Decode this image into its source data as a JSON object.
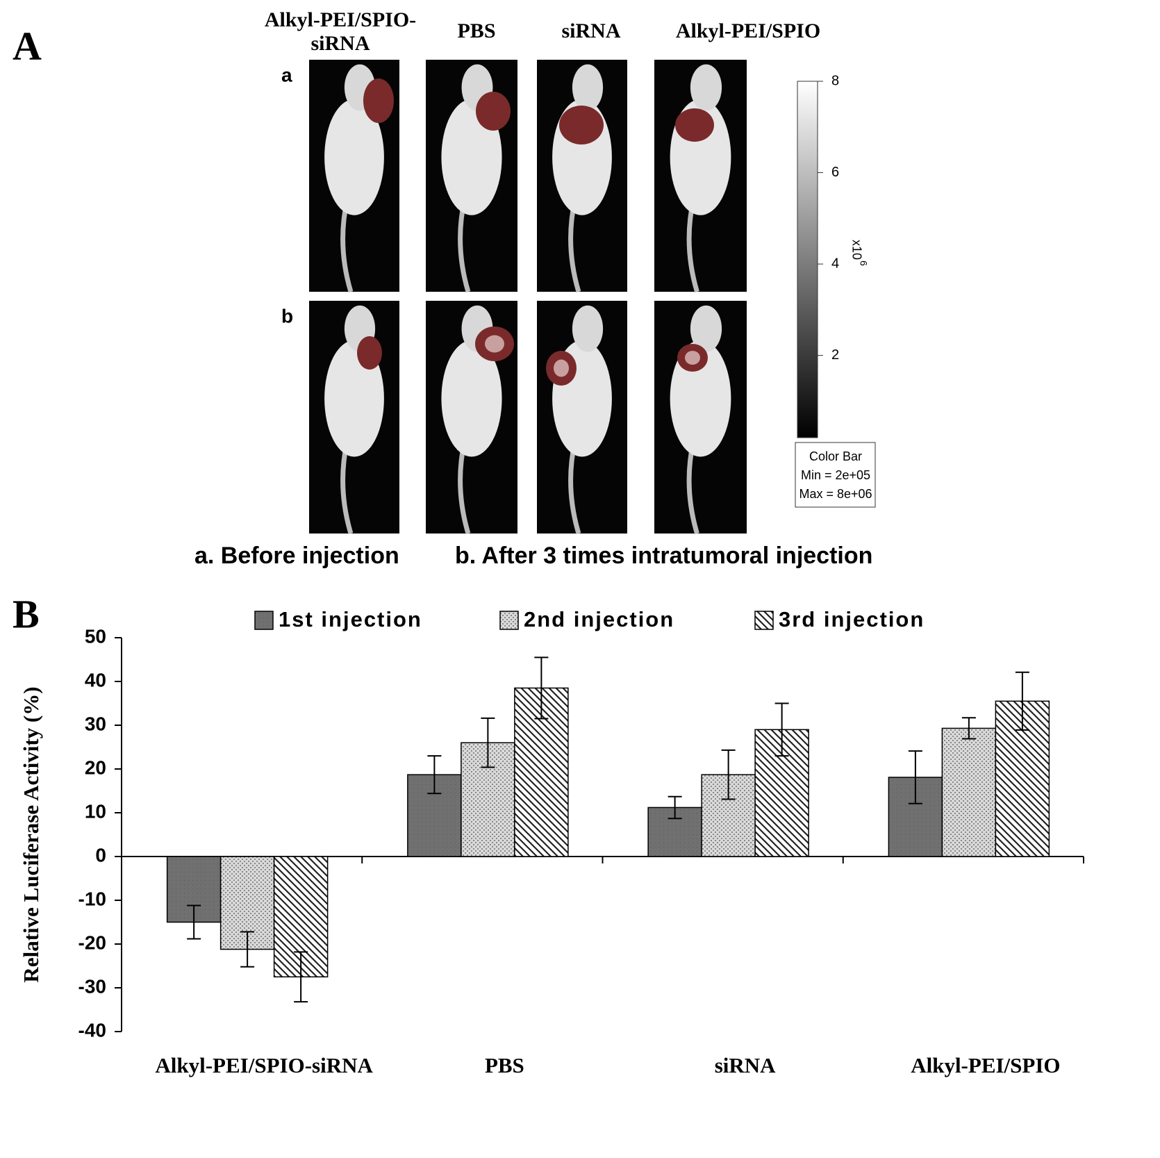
{
  "panel_a": {
    "label": "A",
    "column_labels": [
      "Alkyl-PEI/SPIO-siRNA",
      "PBS",
      "siRNA",
      "Alkyl-PEI/SPIO"
    ],
    "row_labels": [
      "a",
      "b"
    ],
    "colorbar": {
      "lim": [
        0.2,
        8
      ],
      "ticks": [
        2,
        4,
        6,
        8
      ],
      "multiplier_base": "x10",
      "multiplier_exponent": "6",
      "box_lines": [
        "Color Bar",
        "Min = 2e+05",
        "Max = 8e+06"
      ]
    },
    "captions": [
      "a. Before injection",
      "b. After 3 times intratumoral injection"
    ]
  },
  "panel_b": {
    "label": "B"
  },
  "chart_data": {
    "type": "bar",
    "y_label": "Relative Luciferase Activity (%)",
    "categories": [
      "Alkyl-PEI/SPIO-siRNA",
      "PBS",
      "siRNA",
      "Alkyl-PEI/SPIO"
    ],
    "series": [
      {
        "name": "1st injection",
        "color": "#707070",
        "pattern": "solid",
        "values": [
          -15,
          18.7,
          11.2,
          18.1
        ],
        "errors": [
          3.8,
          4.3,
          2.5,
          6.0
        ]
      },
      {
        "name": "2nd injection",
        "color": "#d9d9d9",
        "pattern": "dots",
        "values": [
          -21.2,
          26,
          18.7,
          29.3
        ],
        "errors": [
          4,
          5.6,
          5.6,
          2.4
        ]
      },
      {
        "name": "3rd injection",
        "color": "#ffffff",
        "pattern": "hatch",
        "values": [
          -27.5,
          38.5,
          29,
          35.5
        ],
        "errors": [
          5.7,
          7,
          6,
          6.6
        ]
      }
    ],
    "ylim": [
      -40,
      50
    ],
    "yticks": [
      -40,
      -30,
      -20,
      -10,
      0,
      10,
      20,
      30,
      40,
      50
    ],
    "grid": false
  }
}
